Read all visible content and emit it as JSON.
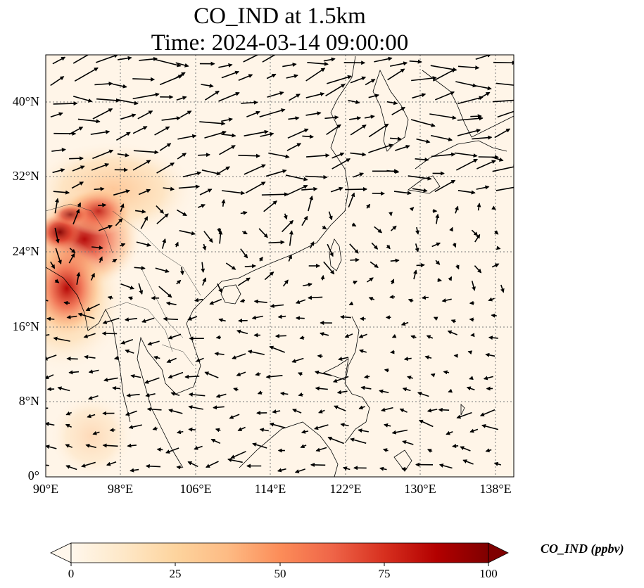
{
  "title": {
    "line1": "CO_IND at 1.5km",
    "line2": "Time: 2024-03-14 09:00:00"
  },
  "map": {
    "projection": "PlateCarree",
    "lon_range": [
      90,
      140
    ],
    "lat_range": [
      0,
      45
    ],
    "gridlines": "dotted",
    "lat_ticks": [
      {
        "value": 0,
        "label": "0°"
      },
      {
        "value": 8,
        "label": "8°N"
      },
      {
        "value": 16,
        "label": "16°N"
      },
      {
        "value": 24,
        "label": "24°N"
      },
      {
        "value": 32,
        "label": "32°N"
      },
      {
        "value": 40,
        "label": "40°N"
      }
    ],
    "lon_ticks": [
      {
        "value": 90,
        "label": "90°E"
      },
      {
        "value": 98,
        "label": "98°E"
      },
      {
        "value": 106,
        "label": "106°E"
      },
      {
        "value": 114,
        "label": "114°E"
      },
      {
        "value": 122,
        "label": "122°E"
      },
      {
        "value": 130,
        "label": "130°E"
      },
      {
        "value": 138,
        "label": "138°E"
      }
    ],
    "field": "CO_IND",
    "background_color": "#fff5e8",
    "high_concentration_region": "Myanmar / Yunnan / Northeast India",
    "wind_vectors": "quiver arrows"
  },
  "colorbar": {
    "label": "CO_IND (ppbv)",
    "min": 0,
    "max": 100,
    "extend": "both",
    "colormap": "OrRd",
    "colors": [
      "#fff7ec",
      "#fee8c8",
      "#fdd49e",
      "#fdbb84",
      "#fc8d59",
      "#ef6548",
      "#d7301f",
      "#b30000",
      "#7f0000"
    ],
    "ticks": [
      {
        "value": 0,
        "label": "0"
      },
      {
        "value": 25,
        "label": "25"
      },
      {
        "value": 50,
        "label": "50"
      },
      {
        "value": 75,
        "label": "75"
      },
      {
        "value": 100,
        "label": "100"
      }
    ]
  }
}
